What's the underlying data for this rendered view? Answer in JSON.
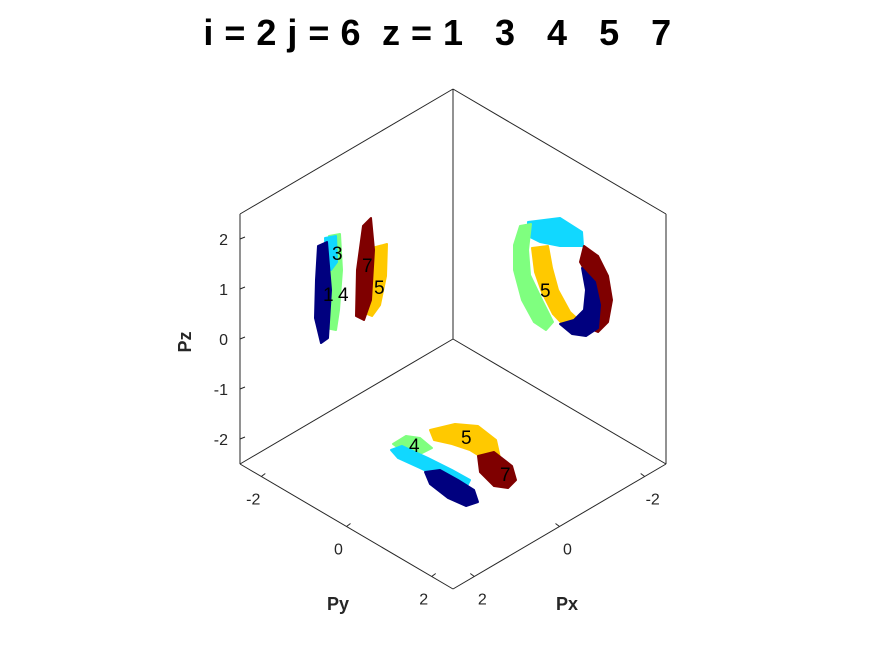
{
  "chart_data": {
    "type": "scatter",
    "view": "3d",
    "title": "i = 2 j = 6  z = 1   3   4   5   7",
    "xlabel": "Px",
    "ylabel": "Py",
    "zlabel": "Pz",
    "xlim": [
      -2.5,
      2.5
    ],
    "ylim": [
      -2.5,
      2.5
    ],
    "zlim": [
      -2.5,
      2.5
    ],
    "x_ticks": [
      "-2",
      "0",
      "2"
    ],
    "y_ticks": [
      "-2",
      "0",
      "2"
    ],
    "z_ticks": [
      "-2",
      "-1",
      "0",
      "1",
      "2"
    ],
    "grid": false,
    "legend": "none",
    "series": [
      {
        "label": "1",
        "color": "#00007f"
      },
      {
        "label": "3",
        "color": "#11d8ff"
      },
      {
        "label": "4",
        "color": "#7fff7f"
      },
      {
        "label": "5",
        "color": "#ffc900"
      },
      {
        "label": "7",
        "color": "#7f0000"
      }
    ]
  }
}
